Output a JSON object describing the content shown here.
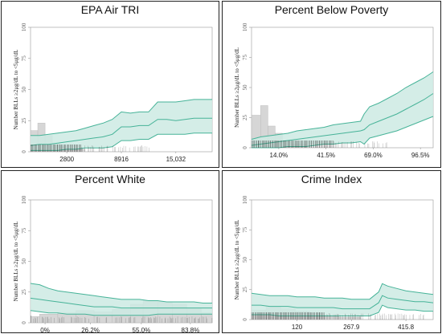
{
  "colors": {
    "ribbon_fill": "#cdeae3",
    "ribbon_edge": "#46b398",
    "hist_fill": "#cfcfcf",
    "hist_edge": "#bdbdbd",
    "rug": "#333333",
    "axis": "#999999"
  },
  "chart_data": [
    {
      "type": "line",
      "title": "EPA Air TRI",
      "ylabel": "Number BLLs ≥2μg/dL to <5μg/dL",
      "y_ticks": [
        "0",
        "25",
        "50",
        "75",
        "100"
      ],
      "x_tick_labels": [
        "2800",
        "8916",
        "15,032"
      ],
      "ylim": [
        0,
        100
      ],
      "xlim": [
        0,
        100
      ],
      "x_tick_positions": [
        20,
        50,
        80
      ],
      "x": [
        0,
        5,
        10,
        15,
        20,
        25,
        30,
        35,
        40,
        45,
        50,
        55,
        60,
        65,
        70,
        75,
        80,
        85,
        90,
        95,
        100
      ],
      "mean": [
        5,
        6,
        6,
        7,
        8,
        9,
        10,
        11,
        12,
        14,
        20,
        20,
        21,
        21,
        26,
        26,
        25,
        26,
        27,
        27,
        27
      ],
      "upper": [
        13,
        13,
        14,
        15,
        16,
        17,
        19,
        21,
        23,
        26,
        32,
        31,
        32,
        32,
        40,
        40,
        40,
        41,
        42,
        42,
        42
      ],
      "lower": [
        1,
        1,
        1,
        1,
        2,
        2,
        3,
        3,
        3,
        4,
        9,
        9,
        10,
        10,
        14,
        14,
        14,
        14,
        15,
        15,
        15
      ],
      "hist": [
        {
          "x0": 0,
          "x1": 4,
          "h": 17
        },
        {
          "x0": 4,
          "x1": 8,
          "h": 23
        },
        {
          "x0": 8,
          "x1": 12,
          "h": 13
        },
        {
          "x0": 12,
          "x1": 16,
          "h": 7
        },
        {
          "x0": 16,
          "x1": 20,
          "h": 4
        },
        {
          "x0": 20,
          "x1": 30,
          "h": 2
        }
      ],
      "rug": {
        "from": 0,
        "to": 65,
        "dense_to": 28
      }
    },
    {
      "type": "line",
      "title": "Percent Below Poverty",
      "ylabel": "Number BLLs ≥2μg/dL to <5μg/dL",
      "y_ticks": [
        "0",
        "25",
        "50",
        "75",
        "100"
      ],
      "x_tick_labels": [
        "14.0%",
        "41.5%",
        "69.0%",
        "96.5%"
      ],
      "ylim": [
        0,
        100
      ],
      "xlim": [
        0,
        100
      ],
      "x_tick_positions": [
        15,
        41,
        67,
        93
      ],
      "x": [
        0,
        5,
        10,
        15,
        20,
        25,
        30,
        35,
        40,
        45,
        50,
        55,
        60,
        62,
        65,
        70,
        75,
        80,
        85,
        90,
        95,
        100
      ],
      "mean": [
        2,
        3,
        4,
        5,
        6,
        7,
        8,
        9,
        10,
        11,
        12,
        13,
        14,
        15,
        19,
        22,
        25,
        28,
        32,
        36,
        40,
        45
      ],
      "upper": [
        7,
        9,
        10,
        11,
        12,
        14,
        15,
        16,
        17,
        19,
        20,
        21,
        22,
        28,
        34,
        37,
        41,
        45,
        50,
        54,
        58,
        63
      ],
      "lower": [
        0,
        0,
        0,
        0,
        1,
        1,
        1,
        2,
        3,
        3,
        4,
        4,
        5,
        3,
        8,
        10,
        12,
        14,
        17,
        20,
        23,
        26
      ],
      "hist": [
        {
          "x0": 0,
          "x1": 5,
          "h": 27
        },
        {
          "x0": 5,
          "x1": 9,
          "h": 35
        },
        {
          "x0": 9,
          "x1": 13,
          "h": 18
        },
        {
          "x0": 13,
          "x1": 17,
          "h": 12
        },
        {
          "x0": 17,
          "x1": 22,
          "h": 6
        },
        {
          "x0": 22,
          "x1": 30,
          "h": 3
        }
      ],
      "rug": {
        "from": 0,
        "to": 75,
        "dense_to": 45
      }
    },
    {
      "type": "line",
      "title": "Percent White",
      "ylabel": "Number BLLs ≥2μg/dL to <5μg/dL",
      "y_ticks": [
        "0",
        "25",
        "50",
        "75",
        "100"
      ],
      "x_tick_labels": [
        "0%",
        "26.2%",
        "55.0%",
        "83.8%"
      ],
      "ylim": [
        0,
        100
      ],
      "xlim": [
        0,
        100
      ],
      "x_tick_positions": [
        8,
        33,
        61,
        88
      ],
      "x": [
        0,
        5,
        10,
        15,
        20,
        25,
        30,
        35,
        40,
        45,
        50,
        55,
        60,
        65,
        70,
        75,
        80,
        85,
        90,
        95,
        100
      ],
      "mean": [
        20,
        19,
        18,
        17,
        16,
        15,
        14,
        13,
        13,
        13,
        12,
        12,
        12,
        12,
        12,
        12,
        12,
        12,
        12,
        12,
        12
      ],
      "upper": [
        32,
        31,
        28,
        26,
        25,
        24,
        23,
        22,
        21,
        20,
        19,
        19,
        19,
        18,
        18,
        17,
        17,
        17,
        17,
        16,
        16
      ],
      "lower": [
        10,
        9,
        8,
        8,
        7,
        7,
        7,
        6,
        6,
        6,
        6,
        6,
        6,
        6,
        7,
        7,
        7,
        7,
        7,
        7,
        7
      ],
      "hist": [
        {
          "x0": 0,
          "x1": 5,
          "h": 5
        },
        {
          "x0": 5,
          "x1": 15,
          "h": 7
        },
        {
          "x0": 15,
          "x1": 25,
          "h": 8
        },
        {
          "x0": 25,
          "x1": 35,
          "h": 10
        },
        {
          "x0": 35,
          "x1": 45,
          "h": 9
        },
        {
          "x0": 45,
          "x1": 55,
          "h": 11
        },
        {
          "x0": 55,
          "x1": 62,
          "h": 15
        },
        {
          "x0": 62,
          "x1": 70,
          "h": 18
        },
        {
          "x0": 70,
          "x1": 78,
          "h": 17
        },
        {
          "x0": 78,
          "x1": 86,
          "h": 15
        },
        {
          "x0": 86,
          "x1": 94,
          "h": 12
        },
        {
          "x0": 94,
          "x1": 100,
          "h": 8
        }
      ],
      "rug": {
        "from": 0,
        "to": 100,
        "dense_to": 0
      }
    },
    {
      "type": "line",
      "title": "Crime Index",
      "ylabel": "Number BLLs ≥2μg/dL to <5μg/dL",
      "y_ticks": [
        "0",
        "25",
        "50",
        "75",
        "100"
      ],
      "x_tick_labels": [
        "120",
        "267.9",
        "415.8"
      ],
      "ylim": [
        0,
        100
      ],
      "xlim": [
        0,
        100
      ],
      "x_tick_positions": [
        25,
        55,
        85
      ],
      "x": [
        0,
        5,
        10,
        15,
        20,
        25,
        30,
        35,
        40,
        45,
        50,
        55,
        60,
        65,
        70,
        72,
        75,
        80,
        85,
        90,
        95,
        100
      ],
      "mean": [
        12,
        12,
        11,
        11,
        11,
        10,
        10,
        10,
        10,
        10,
        9,
        9,
        9,
        9,
        14,
        20,
        18,
        17,
        16,
        15,
        15,
        14
      ],
      "upper": [
        22,
        21,
        20,
        20,
        20,
        19,
        19,
        19,
        18,
        18,
        18,
        17,
        17,
        17,
        23,
        30,
        28,
        26,
        24,
        23,
        22,
        21
      ],
      "lower": [
        4,
        4,
        4,
        3,
        3,
        3,
        3,
        3,
        3,
        3,
        3,
        3,
        3,
        3,
        6,
        12,
        10,
        9,
        8,
        8,
        7,
        7
      ],
      "hist": [
        {
          "x0": 0,
          "x1": 8,
          "h": 8
        },
        {
          "x0": 8,
          "x1": 16,
          "h": 11
        },
        {
          "x0": 16,
          "x1": 24,
          "h": 9
        },
        {
          "x0": 24,
          "x1": 32,
          "h": 7
        },
        {
          "x0": 32,
          "x1": 40,
          "h": 5
        },
        {
          "x0": 40,
          "x1": 48,
          "h": 3
        },
        {
          "x0": 48,
          "x1": 60,
          "h": 2
        }
      ],
      "rug": {
        "from": 0,
        "to": 95,
        "dense_to": 40
      }
    }
  ]
}
